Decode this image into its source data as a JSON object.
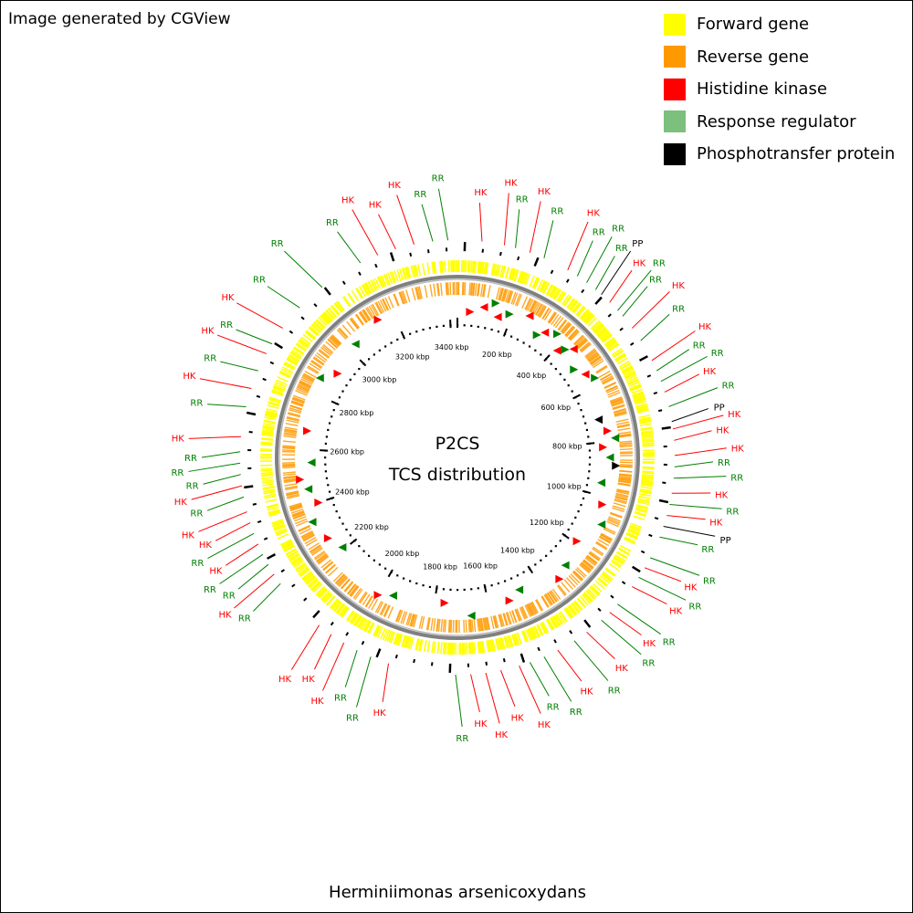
{
  "header": {
    "credit": "Image generated by CGView"
  },
  "legend": {
    "items": [
      {
        "label": "Forward gene",
        "color": "#ffff00"
      },
      {
        "label": "Reverse gene",
        "color": "#ff9900"
      },
      {
        "label": "Histidine kinase",
        "color": "#ff0000"
      },
      {
        "label": "Response regulator",
        "color": "#7dbf7d"
      },
      {
        "label": "Phosphotransfer protein",
        "color": "#000000"
      }
    ]
  },
  "map": {
    "center_title": "P2CS",
    "center_subtitle": "TCS distribution",
    "organism": "Herminiimonas arsenicoxydans",
    "kbp_labels": [
      "200 kbp",
      "400 kbp",
      "600 kbp",
      "800 kbp",
      "1000 kbp",
      "1200 kbp",
      "1400 kbp",
      "1600 kbp",
      "1800 kbp",
      "2000 kbp",
      "2200 kbp",
      "2400 kbp",
      "2600 kbp",
      "2800 kbp",
      "3000 kbp",
      "3200 kbp",
      "3400 kbp"
    ],
    "feature_colors": {
      "HK": "#ff0000",
      "RR": "#008000",
      "PP": "#000000",
      "forward": "#ffff00",
      "reverse": "#ff9900",
      "backbone": "#808080"
    },
    "gene_labels": [
      {
        "t": "HK",
        "a": 5
      },
      {
        "t": "HK",
        "a": 11
      },
      {
        "t": "RR",
        "a": 14
      },
      {
        "t": "HK",
        "a": 18
      },
      {
        "t": "RR",
        "a": 22
      },
      {
        "t": "HK",
        "a": 29
      },
      {
        "t": "RR",
        "a": 32
      },
      {
        "t": "RR",
        "a": 35
      },
      {
        "t": "RR",
        "a": 38
      },
      {
        "t": "PP",
        "a": 40
      },
      {
        "t": "HK",
        "a": 43
      },
      {
        "t": "RR",
        "a": 46
      },
      {
        "t": "RR",
        "a": 48
      },
      {
        "t": "HK",
        "a": 52
      },
      {
        "t": "RR",
        "a": 56
      },
      {
        "t": "HK",
        "a": 62
      },
      {
        "t": "RR",
        "a": 65
      },
      {
        "t": "RR",
        "a": 68
      },
      {
        "t": "HK",
        "a": 71
      },
      {
        "t": "RR",
        "a": 75
      },
      {
        "t": "PP",
        "a": 79
      },
      {
        "t": "HK",
        "a": 81
      },
      {
        "t": "HK",
        "a": 84
      },
      {
        "t": "HK",
        "a": 88
      },
      {
        "t": "RR",
        "a": 91
      },
      {
        "t": "RR",
        "a": 94
      },
      {
        "t": "HK",
        "a": 98
      },
      {
        "t": "RR",
        "a": 101
      },
      {
        "t": "HK",
        "a": 104
      },
      {
        "t": "PP",
        "a": 107
      },
      {
        "t": "RR",
        "a": 110
      },
      {
        "t": "RR",
        "a": 116
      },
      {
        "t": "HK",
        "a": 119
      },
      {
        "t": "RR",
        "a": 122
      },
      {
        "t": "HK",
        "a": 125
      },
      {
        "t": "RR",
        "a": 131
      },
      {
        "t": "HK",
        "a": 134
      },
      {
        "t": "RR",
        "a": 137
      },
      {
        "t": "HK",
        "a": 142
      },
      {
        "t": "RR",
        "a": 146
      },
      {
        "t": "HK",
        "a": 151
      },
      {
        "t": "RR",
        "a": 155
      },
      {
        "t": "RR",
        "a": 159
      },
      {
        "t": "HK",
        "a": 162
      },
      {
        "t": "HK",
        "a": 167
      },
      {
        "t": "HK",
        "a": 171
      },
      {
        "t": "HK",
        "a": 175
      },
      {
        "t": "RR",
        "a": 179
      },
      {
        "t": "HK",
        "a": 197
      },
      {
        "t": "RR",
        "a": 202
      },
      {
        "t": "RR",
        "a": 206
      },
      {
        "t": "HK",
        "a": 210
      },
      {
        "t": "HK",
        "a": 214
      },
      {
        "t": "HK",
        "a": 218
      },
      {
        "t": "RR",
        "a": 233
      },
      {
        "t": "HK",
        "a": 236
      },
      {
        "t": "RR",
        "a": 239
      },
      {
        "t": "RR",
        "a": 242
      },
      {
        "t": "HK",
        "a": 245
      },
      {
        "t": "RR",
        "a": 248
      },
      {
        "t": "HK",
        "a": 251
      },
      {
        "t": "HK",
        "a": 254
      },
      {
        "t": "RR",
        "a": 258
      },
      {
        "t": "HK",
        "a": 261
      },
      {
        "t": "RR",
        "a": 264
      },
      {
        "t": "RR",
        "a": 267
      },
      {
        "t": "RR",
        "a": 270
      },
      {
        "t": "HK",
        "a": 274
      },
      {
        "t": "RR",
        "a": 282
      },
      {
        "t": "HK",
        "a": 287
      },
      {
        "t": "RR",
        "a": 292
      },
      {
        "t": "HK",
        "a": 297
      },
      {
        "t": "RR",
        "a": 300
      },
      {
        "t": "HK",
        "a": 305
      },
      {
        "t": "RR",
        "a": 312
      },
      {
        "t": "RR",
        "a": 320
      },
      {
        "t": "RR",
        "a": 332
      },
      {
        "t": "HK",
        "a": 337
      },
      {
        "t": "HK",
        "a": 342
      },
      {
        "t": "HK",
        "a": 347
      },
      {
        "t": "RR",
        "a": 352
      },
      {
        "t": "RR",
        "a": 356
      }
    ],
    "inner_markers": [
      {
        "t": "HK",
        "a": 5
      },
      {
        "t": "HK",
        "a": 10
      },
      {
        "t": "RR",
        "a": 14
      },
      {
        "t": "HK",
        "a": 16
      },
      {
        "t": "RR",
        "a": 20
      },
      {
        "t": "HK",
        "a": 27
      },
      {
        "t": "RR",
        "a": 33
      },
      {
        "t": "HK",
        "a": 35
      },
      {
        "t": "RR",
        "a": 39
      },
      {
        "t": "HK",
        "a": 43
      },
      {
        "t": "RR",
        "a": 45
      },
      {
        "t": "HK",
        "a": 47
      },
      {
        "t": "RR",
        "a": 53
      },
      {
        "t": "HK",
        "a": 57
      },
      {
        "t": "RR",
        "a": 60
      },
      {
        "t": "PP",
        "a": 75
      },
      {
        "t": "HK",
        "a": 80
      },
      {
        "t": "RR",
        "a": 83
      },
      {
        "t": "HK",
        "a": 86
      },
      {
        "t": "RR",
        "a": 90
      },
      {
        "t": "PP",
        "a": 93
      },
      {
        "t": "RR",
        "a": 100
      },
      {
        "t": "HK",
        "a": 108
      },
      {
        "t": "RR",
        "a": 115
      },
      {
        "t": "HK",
        "a": 125
      },
      {
        "t": "RR",
        "a": 135
      },
      {
        "t": "HK",
        "a": 140
      },
      {
        "t": "RR",
        "a": 155
      },
      {
        "t": "HK",
        "a": 160
      },
      {
        "t": "RR",
        "a": 175
      },
      {
        "t": "HK",
        "a": 185
      },
      {
        "t": "RR",
        "a": 205
      },
      {
        "t": "HK",
        "a": 210
      },
      {
        "t": "RR",
        "a": 232
      },
      {
        "t": "HK",
        "a": 238
      },
      {
        "t": "RR",
        "a": 246
      },
      {
        "t": "HK",
        "a": 252
      },
      {
        "t": "RR",
        "a": 258
      },
      {
        "t": "HK",
        "a": 262
      },
      {
        "t": "RR",
        "a": 268
      },
      {
        "t": "HK",
        "a": 280
      },
      {
        "t": "RR",
        "a": 300
      },
      {
        "t": "HK",
        "a": 305
      },
      {
        "t": "RR",
        "a": 318
      },
      {
        "t": "HK",
        "a": 330
      }
    ]
  }
}
